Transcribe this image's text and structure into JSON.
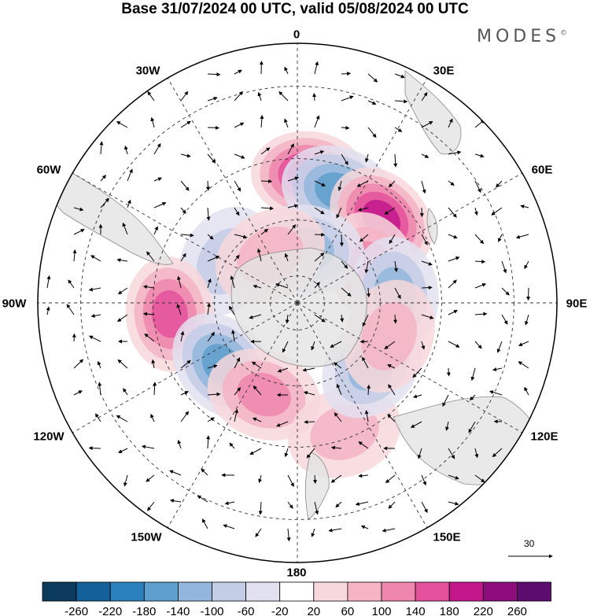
{
  "title": "Base 31/07/2024 00 UTC, valid 05/08/2024 00 UTC",
  "brand": "MODES",
  "brand_mark": "©",
  "longitude_labels": {
    "n": "0",
    "ne": "30E",
    "ene": "60E",
    "e": "90E",
    "ese": "120E",
    "se": "150E",
    "s": "180",
    "sw": "150W",
    "wsw": "120W",
    "w": "90W",
    "wnw": "60W",
    "nw": "30W"
  },
  "reference_vector": {
    "value": "30"
  },
  "colorbar": {
    "labels": [
      "-260",
      "-220",
      "-180",
      "-140",
      "-100",
      "-60",
      "-20",
      "20",
      "60",
      "100",
      "140",
      "180",
      "220",
      "260"
    ],
    "colors": [
      "#0b3a5c",
      "#14609a",
      "#2b81bd",
      "#5f9fcd",
      "#93b7dc",
      "#c4cde6",
      "#e2e1f0",
      "#ffffff",
      "#f7d8dc",
      "#f4b4c4",
      "#ee86ad",
      "#e4519d",
      "#c2188c",
      "#8e0d7c",
      "#5b0c6e"
    ]
  },
  "anomaly_blobs": [
    {
      "lon": 5,
      "lat": -45,
      "value": 180
    },
    {
      "lon": 20,
      "lat": -48,
      "value": -160
    },
    {
      "lon": 45,
      "lat": -48,
      "value": 200
    },
    {
      "lon": 65,
      "lat": -60,
      "value": 120
    },
    {
      "lon": 85,
      "lat": -55,
      "value": -120
    },
    {
      "lon": 10,
      "lat": -70,
      "value": -100
    },
    {
      "lon": -60,
      "lat": -60,
      "value": -90
    },
    {
      "lon": -95,
      "lat": -45,
      "value": 160
    },
    {
      "lon": -130,
      "lat": -55,
      "value": -160
    },
    {
      "lon": -160,
      "lat": -55,
      "value": 120
    },
    {
      "lon": 160,
      "lat": -42,
      "value": 80
    },
    {
      "lon": 130,
      "lat": -55,
      "value": -110
    },
    {
      "lon": 110,
      "lat": -55,
      "value": 60
    },
    {
      "lon": -30,
      "lat": -70,
      "value": 60
    }
  ]
}
